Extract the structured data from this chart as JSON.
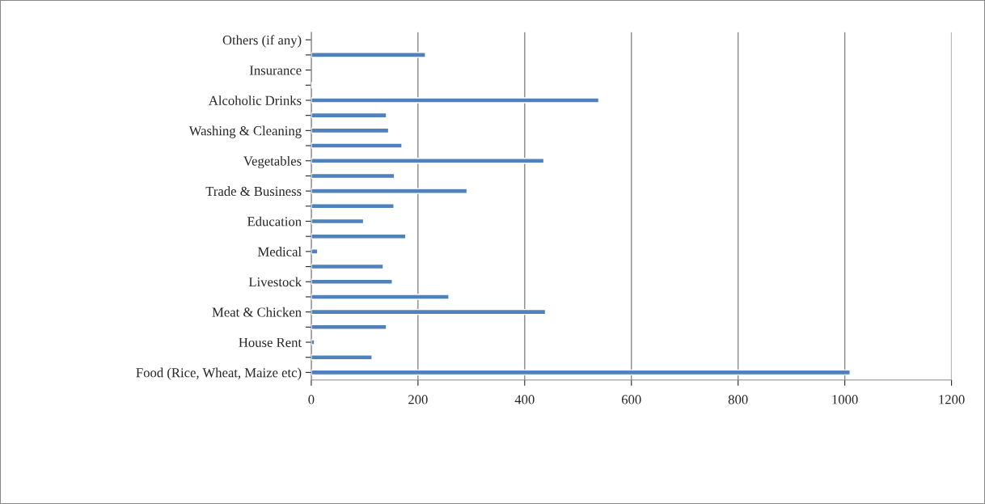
{
  "chart_data": {
    "type": "bar",
    "orientation": "horizontal",
    "categories": [
      "Others (if any)",
      null,
      "Insurance",
      null,
      "Alcoholic Drinks",
      null,
      "Washing & Cleaning",
      null,
      "Vegetables",
      null,
      "Trade & Business",
      null,
      "Education",
      null,
      "Medical",
      null,
      "Livestock",
      null,
      "Meat & Chicken",
      null,
      "House Rent",
      null,
      "Food (Rice, Wheat, Maize etc)"
    ],
    "values": [
      null,
      214,
      null,
      2,
      539,
      141,
      145,
      170,
      436,
      156,
      292,
      155,
      98,
      177,
      12,
      135,
      152,
      258,
      439,
      141,
      6,
      114,
      1010
    ],
    "color": "#4f81bd",
    "xlim": [
      0,
      1200
    ],
    "xticks": [
      0,
      200,
      400,
      600,
      800,
      1000,
      1200
    ],
    "grid": "x",
    "legend": false
  }
}
